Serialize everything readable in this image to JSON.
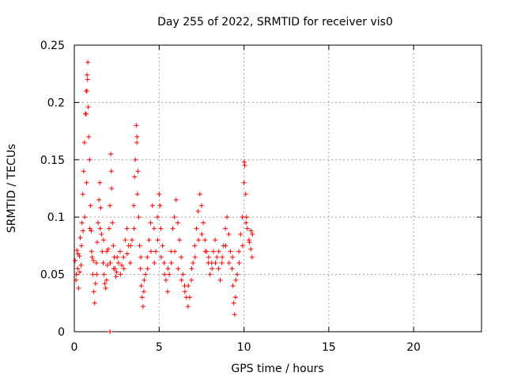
{
  "chart_data": {
    "type": "scatter",
    "title": "Day 255 of 2022, SRMTID for receiver vis0",
    "xlabel": "GPS time / hours",
    "ylabel": "SRMTID / TECUs",
    "xlim": [
      0,
      24
    ],
    "ylim": [
      0,
      0.25
    ],
    "grid": true,
    "marker": "+",
    "marker_color": "#ff0000",
    "xticks": [
      0,
      5,
      10,
      15,
      20
    ],
    "yticks": [
      0,
      0.05,
      0.1,
      0.15,
      0.2,
      0.25
    ],
    "xtick_labels": [
      "0",
      "5",
      "10",
      "15",
      "20"
    ],
    "ytick_labels": [
      "0",
      "0.05",
      "0.1",
      "0.15",
      "0.2",
      "0.25"
    ],
    "series": [
      {
        "points": [
          [
            0.05,
            0.062
          ],
          [
            0.1,
            0.045
          ],
          [
            0.15,
            0.071
          ],
          [
            0.2,
            0.055
          ],
          [
            0.25,
            0.038
          ],
          [
            0.3,
            0.066
          ],
          [
            0.35,
            0.082
          ],
          [
            0.4,
            0.058
          ],
          [
            0.45,
            0.095
          ],
          [
            0.5,
            0.12
          ],
          [
            0.55,
            0.14
          ],
          [
            0.6,
            0.165
          ],
          [
            0.65,
            0.19
          ],
          [
            0.7,
            0.21
          ],
          [
            0.75,
            0.224
          ],
          [
            0.8,
            0.235
          ],
          [
            0.82,
            0.196
          ],
          [
            0.85,
            0.17
          ],
          [
            0.9,
            0.15
          ],
          [
            0.95,
            0.11
          ],
          [
            1.0,
            0.088
          ],
          [
            1.05,
            0.065
          ],
          [
            1.1,
            0.05
          ],
          [
            1.15,
            0.035
          ],
          [
            1.2,
            0.025
          ],
          [
            1.25,
            0.042
          ],
          [
            1.3,
            0.06
          ],
          [
            1.35,
            0.078
          ],
          [
            1.4,
            0.095
          ],
          [
            1.45,
            0.115
          ],
          [
            1.5,
            0.13
          ],
          [
            1.55,
            0.108
          ],
          [
            1.6,
            0.085
          ],
          [
            1.65,
            0.07
          ],
          [
            1.7,
            0.06
          ],
          [
            1.75,
            0.05
          ],
          [
            1.8,
            0.042
          ],
          [
            1.85,
            0.038
          ],
          [
            1.9,
            0.045
          ],
          [
            1.95,
            0.058
          ],
          [
            2.0,
            0.072
          ],
          [
            2.05,
            0.09
          ],
          [
            2.1,
            0.11
          ],
          [
            2.15,
            0.155
          ],
          [
            2.2,
            0.125
          ],
          [
            2.25,
            0.095
          ],
          [
            2.3,
            0.075
          ],
          [
            2.35,
            0.065
          ],
          [
            2.4,
            0.055
          ],
          [
            2.45,
            0.048
          ],
          [
            2.5,
            0.052
          ],
          [
            2.6,
            0.06
          ],
          [
            2.7,
            0.07
          ],
          [
            2.8,
            0.058
          ],
          [
            2.9,
            0.065
          ],
          [
            3.0,
            0.08
          ],
          [
            3.1,
            0.09
          ],
          [
            3.2,
            0.075
          ],
          [
            3.3,
            0.06
          ],
          [
            3.4,
            0.08
          ],
          [
            3.5,
            0.11
          ],
          [
            3.55,
            0.135
          ],
          [
            3.6,
            0.15
          ],
          [
            3.65,
            0.18
          ],
          [
            3.7,
            0.17
          ],
          [
            3.75,
            0.14
          ],
          [
            3.8,
            0.1
          ],
          [
            3.85,
            0.075
          ],
          [
            3.9,
            0.055
          ],
          [
            3.95,
            0.04
          ],
          [
            4.0,
            0.03
          ],
          [
            4.05,
            0.022
          ],
          [
            4.1,
            0.035
          ],
          [
            4.2,
            0.05
          ],
          [
            4.3,
            0.065
          ],
          [
            4.4,
            0.08
          ],
          [
            4.5,
            0.095
          ],
          [
            4.6,
            0.11
          ],
          [
            4.7,
            0.09
          ],
          [
            4.8,
            0.07
          ],
          [
            4.9,
            0.1
          ],
          [
            5.0,
            0.12
          ],
          [
            5.05,
            0.11
          ],
          [
            5.1,
            0.09
          ],
          [
            5.2,
            0.075
          ],
          [
            5.3,
            0.06
          ],
          [
            5.4,
            0.045
          ],
          [
            5.5,
            0.035
          ],
          [
            5.6,
            0.05
          ],
          [
            5.7,
            0.07
          ],
          [
            5.8,
            0.09
          ],
          [
            5.9,
            0.1
          ],
          [
            6.0,
            0.115
          ],
          [
            6.1,
            0.095
          ],
          [
            6.2,
            0.08
          ],
          [
            6.3,
            0.065
          ],
          [
            6.4,
            0.05
          ],
          [
            6.5,
            0.04
          ],
          [
            6.6,
            0.03
          ],
          [
            6.7,
            0.022
          ],
          [
            6.8,
            0.03
          ],
          [
            6.9,
            0.045
          ],
          [
            7.0,
            0.06
          ],
          [
            7.1,
            0.075
          ],
          [
            7.2,
            0.09
          ],
          [
            7.3,
            0.105
          ],
          [
            7.4,
            0.12
          ],
          [
            7.5,
            0.11
          ],
          [
            7.6,
            0.095
          ],
          [
            7.7,
            0.08
          ],
          [
            7.8,
            0.07
          ],
          [
            7.9,
            0.06
          ],
          [
            8.0,
            0.05
          ],
          [
            8.1,
            0.06
          ],
          [
            8.2,
            0.07
          ],
          [
            8.3,
            0.08
          ],
          [
            8.4,
            0.065
          ],
          [
            8.5,
            0.055
          ],
          [
            8.6,
            0.045
          ],
          [
            8.7,
            0.06
          ],
          [
            8.8,
            0.075
          ],
          [
            8.9,
            0.09
          ],
          [
            9.0,
            0.1
          ],
          [
            9.1,
            0.085
          ],
          [
            9.2,
            0.07
          ],
          [
            9.3,
            0.055
          ],
          [
            9.35,
            0.04
          ],
          [
            9.4,
            0.025
          ],
          [
            9.45,
            0.015
          ],
          [
            9.5,
            0.03
          ],
          [
            9.6,
            0.05
          ],
          [
            9.7,
            0.07
          ],
          [
            9.8,
            0.085
          ],
          [
            9.9,
            0.1
          ],
          [
            10.0,
            0.13
          ],
          [
            10.05,
            0.145
          ],
          [
            10.1,
            0.12
          ],
          [
            10.15,
            0.1
          ],
          [
            10.2,
            0.09
          ],
          [
            10.3,
            0.08
          ],
          [
            10.4,
            0.072
          ],
          [
            10.5,
            0.085
          ],
          [
            0.12,
            0.05
          ],
          [
            0.22,
            0.068
          ],
          [
            0.32,
            0.052
          ],
          [
            0.42,
            0.075
          ],
          [
            0.52,
            0.088
          ],
          [
            0.62,
            0.1
          ],
          [
            0.72,
            0.13
          ],
          [
            0.92,
            0.09
          ],
          [
            1.02,
            0.07
          ],
          [
            1.12,
            0.062
          ],
          [
            1.32,
            0.05
          ],
          [
            1.52,
            0.09
          ],
          [
            1.72,
            0.08
          ],
          [
            1.92,
            0.07
          ],
          [
            2.12,
            0.06
          ],
          [
            2.32,
            0.055
          ],
          [
            2.52,
            0.065
          ],
          [
            2.72,
            0.05
          ],
          [
            2.92,
            0.055
          ],
          [
            3.12,
            0.068
          ],
          [
            3.32,
            0.075
          ],
          [
            3.52,
            0.09
          ],
          [
            3.72,
            0.12
          ],
          [
            3.92,
            0.065
          ],
          [
            4.12,
            0.045
          ],
          [
            4.32,
            0.055
          ],
          [
            4.52,
            0.07
          ],
          [
            4.72,
            0.06
          ],
          [
            4.92,
            0.08
          ],
          [
            5.12,
            0.065
          ],
          [
            5.32,
            0.05
          ],
          [
            5.52,
            0.055
          ],
          [
            5.72,
            0.06
          ],
          [
            5.92,
            0.07
          ],
          [
            6.12,
            0.055
          ],
          [
            6.32,
            0.045
          ],
          [
            6.52,
            0.035
          ],
          [
            6.72,
            0.04
          ],
          [
            6.92,
            0.055
          ],
          [
            7.12,
            0.065
          ],
          [
            7.32,
            0.08
          ],
          [
            7.52,
            0.085
          ],
          [
            7.72,
            0.07
          ],
          [
            7.92,
            0.065
          ],
          [
            8.12,
            0.055
          ],
          [
            8.32,
            0.06
          ],
          [
            8.52,
            0.07
          ],
          [
            8.72,
            0.065
          ],
          [
            8.92,
            0.075
          ],
          [
            9.12,
            0.06
          ],
          [
            9.32,
            0.065
          ],
          [
            9.52,
            0.045
          ],
          [
            9.72,
            0.06
          ],
          [
            9.92,
            0.075
          ],
          [
            10.12,
            0.095
          ],
          [
            10.32,
            0.078
          ],
          [
            10.42,
            0.088
          ],
          [
            10.48,
            0.065
          ],
          [
            0.7,
            0.19
          ],
          [
            0.78,
            0.22
          ],
          [
            0.74,
            0.21
          ],
          [
            3.68,
            0.165
          ],
          [
            10.02,
            0.148
          ],
          [
            2.18,
            0.14
          ],
          [
            2.1,
            0.0
          ]
        ]
      }
    ]
  }
}
